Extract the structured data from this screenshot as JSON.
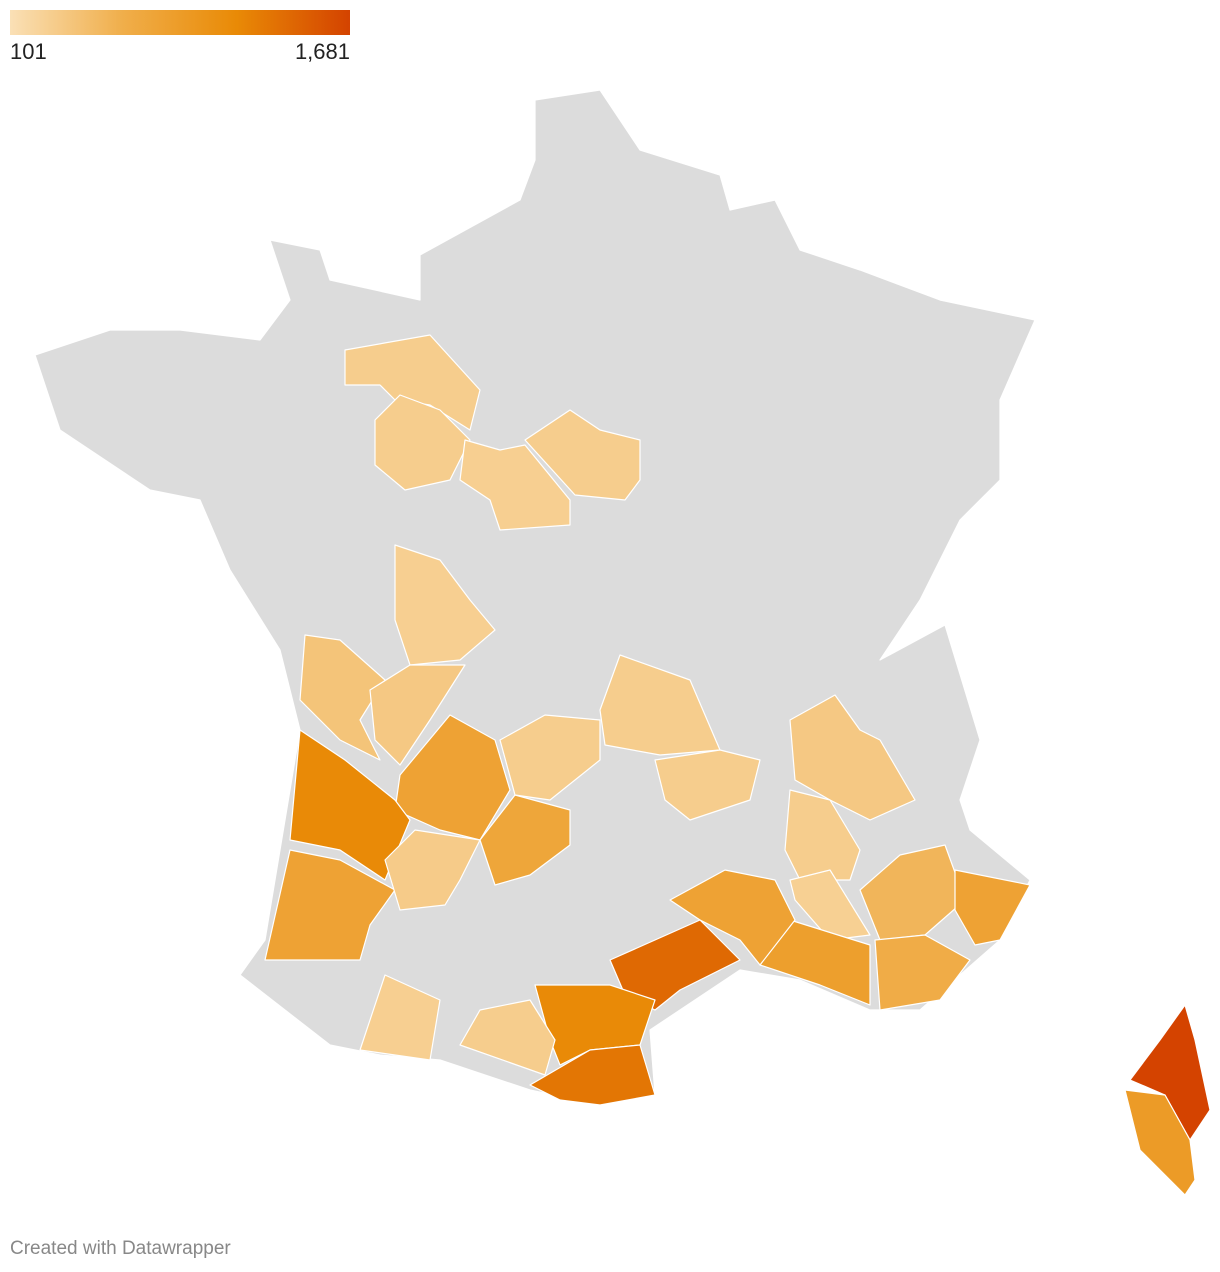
{
  "map": {
    "legend": {
      "min": 101,
      "max": {
        "value": 1681,
        "label": "1,681"
      },
      "colors": [
        "#fae0b6",
        "#f0ae4a",
        "#e98a06",
        "#d44300"
      ]
    },
    "missing_color": "#dcdcdc",
    "regions": [
      {
        "value": 300
      },
      {
        "value": 300
      },
      {
        "value": 280
      },
      {
        "value": 300
      },
      {
        "value": 280
      },
      {
        "value": 400
      },
      {
        "value": 350
      },
      {
        "value": 800
      },
      {
        "value": 1150
      },
      {
        "value": 800
      },
      {
        "value": 320
      },
      {
        "value": 750
      },
      {
        "value": 300
      },
      {
        "value": 300
      },
      {
        "value": 300
      },
      {
        "value": 350
      },
      {
        "value": 300
      },
      {
        "value": 270
      },
      {
        "value": 550
      },
      {
        "value": 800
      },
      {
        "value": 650
      },
      {
        "value": 850
      },
      {
        "value": 800
      },
      {
        "value": 1400
      },
      {
        "value": 1150
      },
      {
        "value": 1300
      },
      {
        "value": 300
      },
      {
        "value": 280
      },
      {
        "value": 1681
      },
      {
        "value": 900
      }
    ],
    "footer": "Created with Datawrapper"
  }
}
